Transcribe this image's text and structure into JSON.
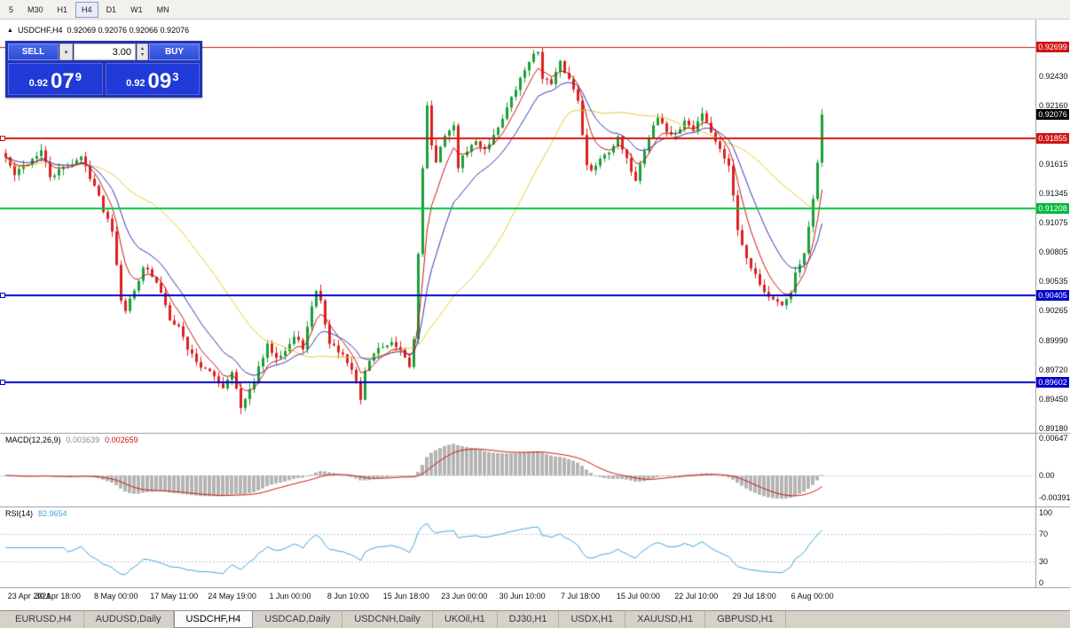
{
  "toolbar": {
    "timeframes": [
      "5",
      "M30",
      "H1",
      "H4",
      "D1",
      "W1",
      "MN"
    ],
    "active_timeframe": "H4"
  },
  "chart": {
    "title": "USDCHF,H4",
    "ohlc": "0.92069 0.92076 0.92066 0.92076"
  },
  "trade": {
    "sell_label": "SELL",
    "buy_label": "BUY",
    "volume": "3.00",
    "sell_price_base": "0.92",
    "sell_price_big": "07",
    "sell_price_sup": "9",
    "buy_price_base": "0.92",
    "buy_price_big": "09",
    "buy_price_sup": "3"
  },
  "price_axis": {
    "labels": [
      "0.92430",
      "0.92160",
      "0.91615",
      "0.91345",
      "0.91075",
      "0.90805",
      "0.90535",
      "0.90265",
      "0.89990",
      "0.89720",
      "0.89450",
      "0.89180"
    ]
  },
  "levels": [
    {
      "price_label": "0.92699",
      "value": 0.92699,
      "color": "#d01414",
      "badge": "#d01414",
      "line_width": 1,
      "handle": false
    },
    {
      "price_label": "0.92076",
      "value": 0.92076,
      "color": "#000000",
      "badge": "#000000",
      "line_width": 0,
      "handle": false
    },
    {
      "price_label": "0.91855",
      "value": 0.91855,
      "color": "#d01414",
      "badge": "#d01414",
      "line_width": 2,
      "handle": true
    },
    {
      "price_label": "0.91208",
      "value": 0.91208,
      "color": "#00c83c",
      "badge": "#00b93c",
      "line_width": 2,
      "handle": false
    },
    {
      "price_label": "0.90405",
      "value": 0.90405,
      "color": "#0000c8",
      "badge": "#0000c8",
      "line_width": 2,
      "handle": true
    },
    {
      "price_label": "0.89602",
      "value": 0.89602,
      "color": "#0000c8",
      "badge": "#0000c8",
      "line_width": 2,
      "handle": true
    }
  ],
  "time_axis": [
    "23 Apr 2021",
    "30 Apr 18:00",
    "8 May 00:00",
    "17 May 11:00",
    "24 May 19:00",
    "1 Jun 00:00",
    "8 Jun 10:00",
    "15 Jun 18:00",
    "23 Jun 00:00",
    "30 Jun 10:00",
    "7 Jul 18:00",
    "15 Jul 00:00",
    "22 Jul 10:00",
    "29 Jul 18:00",
    "6 Aug 00:00"
  ],
  "macd": {
    "label": "MACD(12,26,9)",
    "value_main": "0.003639",
    "value_signal": "0.002659",
    "axis": [
      "0.00647",
      "0.00",
      "-0.00391"
    ]
  },
  "rsi": {
    "label": "RSI(14)",
    "value": "82.9654",
    "axis": [
      "100",
      "70",
      "30",
      "0"
    ]
  },
  "tabs": {
    "items": [
      "EURUSD,H4",
      "AUDUSD,Daily",
      "USDCHF,H4",
      "USDCAD,Daily",
      "USDCNH,Daily",
      "UKOil,H1",
      "DJ30,H1",
      "USDX,H1",
      "XAUUSD,H1",
      "GBPUSD,H1"
    ],
    "active": "USDCHF,H4"
  },
  "chart_data": {
    "type": "candlestick-with-indicators",
    "symbol": "USDCHF",
    "timeframe": "H4",
    "bars": 185,
    "price_axis_ref": {
      "price": 0.92699,
      "y": 31,
      "scale": 12219
    },
    "candle_up": "#18a038",
    "candle_down": "#dc2020",
    "close_anchors": [
      [
        0,
        0.9168
      ],
      [
        2,
        0.9152
      ],
      [
        5,
        0.9163
      ],
      [
        8,
        0.9174
      ],
      [
        10,
        0.915
      ],
      [
        13,
        0.9158
      ],
      [
        17,
        0.9168
      ],
      [
        20,
        0.9142
      ],
      [
        22,
        0.912
      ],
      [
        24,
        0.9102
      ],
      [
        26,
        0.9038
      ],
      [
        27,
        0.9028
      ],
      [
        29,
        0.9045
      ],
      [
        31,
        0.9068
      ],
      [
        33,
        0.9058
      ],
      [
        35,
        0.9044
      ],
      [
        37,
        0.902
      ],
      [
        39,
        0.9012
      ],
      [
        41,
        0.8992
      ],
      [
        44,
        0.8975
      ],
      [
        47,
        0.8966
      ],
      [
        49,
        0.8956
      ],
      [
        51,
        0.8972
      ],
      [
        53,
        0.8936
      ],
      [
        55,
        0.8952
      ],
      [
        57,
        0.8973
      ],
      [
        59,
        0.8994
      ],
      [
        61,
        0.8985
      ],
      [
        63,
        0.899
      ],
      [
        65,
        0.9002
      ],
      [
        67,
        0.8993
      ],
      [
        70,
        0.9046
      ],
      [
        71,
        0.9035
      ],
      [
        73,
        0.8996
      ],
      [
        75,
        0.899
      ],
      [
        77,
        0.8978
      ],
      [
        79,
        0.8962
      ],
      [
        80,
        0.8944
      ],
      [
        81,
        0.8972
      ],
      [
        83,
        0.8988
      ],
      [
        85,
        0.8994
      ],
      [
        87,
        0.8996
      ],
      [
        89,
        0.8988
      ],
      [
        91,
        0.8975
      ],
      [
        92,
        0.9
      ],
      [
        93,
        0.908
      ],
      [
        94,
        0.916
      ],
      [
        95,
        0.9215
      ],
      [
        96,
        0.918
      ],
      [
        97,
        0.9162
      ],
      [
        99,
        0.919
      ],
      [
        101,
        0.9196
      ],
      [
        102,
        0.916
      ],
      [
        104,
        0.9175
      ],
      [
        106,
        0.9182
      ],
      [
        108,
        0.9176
      ],
      [
        110,
        0.9188
      ],
      [
        112,
        0.9205
      ],
      [
        114,
        0.9222
      ],
      [
        116,
        0.924
      ],
      [
        118,
        0.9258
      ],
      [
        120,
        0.9266
      ],
      [
        121,
        0.9243
      ],
      [
        123,
        0.9235
      ],
      [
        125,
        0.9255
      ],
      [
        127,
        0.924
      ],
      [
        129,
        0.9222
      ],
      [
        131,
        0.916
      ],
      [
        132,
        0.9155
      ],
      [
        134,
        0.9168
      ],
      [
        136,
        0.9175
      ],
      [
        138,
        0.9185
      ],
      [
        140,
        0.9165
      ],
      [
        142,
        0.9148
      ],
      [
        144,
        0.9175
      ],
      [
        146,
        0.9198
      ],
      [
        147,
        0.9205
      ],
      [
        149,
        0.9192
      ],
      [
        151,
        0.9188
      ],
      [
        153,
        0.9202
      ],
      [
        155,
        0.9192
      ],
      [
        157,
        0.921
      ],
      [
        159,
        0.9192
      ],
      [
        161,
        0.9175
      ],
      [
        163,
        0.9162
      ],
      [
        165,
        0.9102
      ],
      [
        167,
        0.9076
      ],
      [
        169,
        0.906
      ],
      [
        171,
        0.9044
      ],
      [
        173,
        0.9036
      ],
      [
        175,
        0.903
      ],
      [
        177,
        0.9045
      ],
      [
        178,
        0.906
      ],
      [
        180,
        0.9078
      ],
      [
        181,
        0.9102
      ],
      [
        182,
        0.913
      ],
      [
        183,
        0.9165
      ],
      [
        184,
        0.92076
      ]
    ],
    "moving_averages": [
      {
        "name": "slow",
        "period": 34,
        "type": "sma",
        "color": "#e6c832"
      },
      {
        "name": "medium",
        "period": 14,
        "type": "ema",
        "color": "#3232b4"
      },
      {
        "name": "fast",
        "period": 6,
        "type": "ema",
        "color": "#c81414"
      }
    ],
    "macd_settings": {
      "fast": 12,
      "slow": 26,
      "signal": 9,
      "histogram_color": "#b4b4b4",
      "signal_color": "#c81414"
    },
    "rsi_period": 14,
    "rsi_color": "#3fa3dc"
  }
}
